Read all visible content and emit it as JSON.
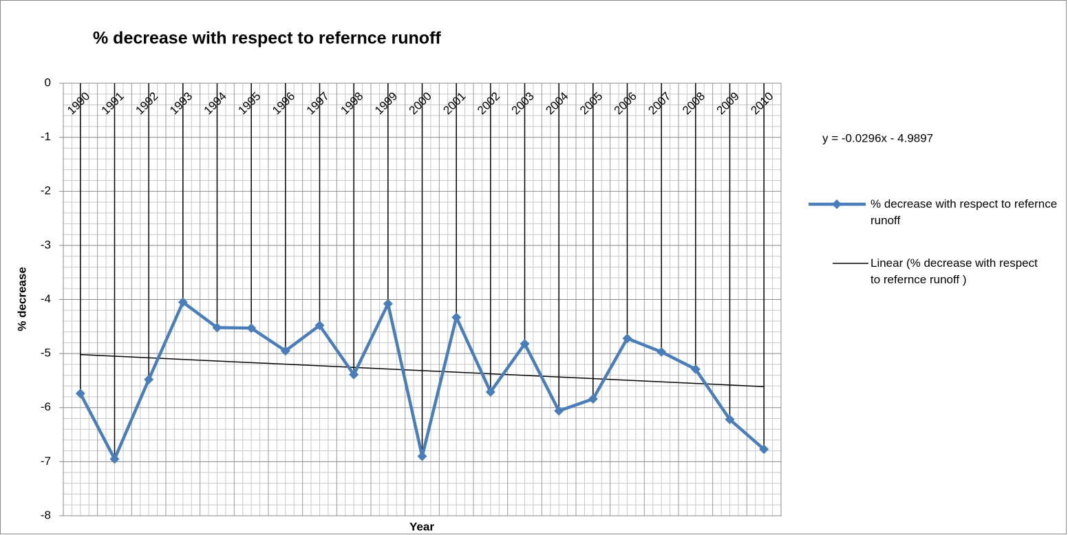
{
  "chart_data": {
    "type": "line",
    "title": "% decrease with respect to refernce runoff",
    "x_label": "Year",
    "y_label": "% decrease",
    "categories": [
      "1990",
      "1991",
      "1992",
      "1993",
      "1994",
      "1995",
      "1996",
      "1997",
      "1998",
      "1999",
      "2000",
      "2001",
      "2002",
      "2003",
      "2004",
      "2005",
      "2006",
      "2007",
      "2008",
      "2009",
      "2010"
    ],
    "series": [
      {
        "name": "% decrease with respect to refernce runoff",
        "color": "#4a7ebb",
        "values": [
          -5.74,
          -6.95,
          -5.48,
          -4.05,
          -4.52,
          -4.53,
          -4.95,
          -4.48,
          -5.39,
          -4.08,
          -6.9,
          -4.33,
          -5.71,
          -4.82,
          -6.06,
          -5.84,
          -4.72,
          -4.97,
          -5.29,
          -6.22,
          -6.77
        ]
      }
    ],
    "trendline": {
      "name": "Linear (% decrease with respect to refernce runoff )",
      "equation": "y = -0.0296x - 4.9897",
      "slope": -0.0296,
      "intercept": -4.9897,
      "color": "#000000"
    },
    "drop_lines": true,
    "ylim": [
      -8,
      0
    ],
    "yticks": [
      0,
      -1,
      -2,
      -3,
      -4,
      -5,
      -6,
      -7,
      -8
    ],
    "grid": true,
    "minor_grid": true,
    "legend": "right"
  }
}
